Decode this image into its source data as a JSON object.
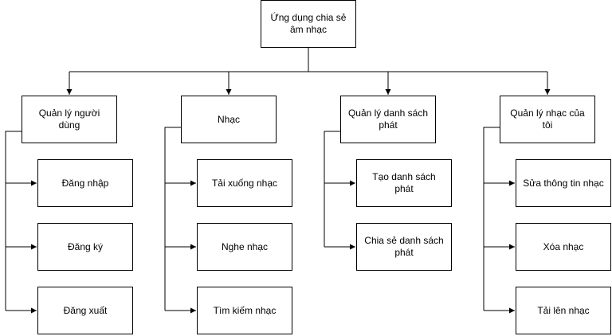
{
  "root": {
    "label": "Ứng dụng chia sẻ âm nhạc"
  },
  "modules": [
    {
      "label": "Quản lý người dùng",
      "items": [
        {
          "label": "Đăng nhập"
        },
        {
          "label": "Đăng ký"
        },
        {
          "label": "Đăng xuất"
        }
      ]
    },
    {
      "label": "Nhạc",
      "items": [
        {
          "label": "Tải xuống nhạc"
        },
        {
          "label": "Nghe nhạc"
        },
        {
          "label": "Tìm kiếm nhạc"
        }
      ]
    },
    {
      "label": "Quản lý danh sách phát",
      "items": [
        {
          "label": "Tạo danh sách phát"
        },
        {
          "label": "Chia sẻ danh sách phát"
        }
      ]
    },
    {
      "label": "Quản lý nhạc của tôi",
      "items": [
        {
          "label": "Sửa thông tin nhạc"
        },
        {
          "label": "Xóa nhạc"
        },
        {
          "label": "Tải lên nhạc"
        }
      ]
    }
  ],
  "colors": {
    "stroke": "#000000",
    "fill": "#ffffff",
    "text": "#000000"
  }
}
